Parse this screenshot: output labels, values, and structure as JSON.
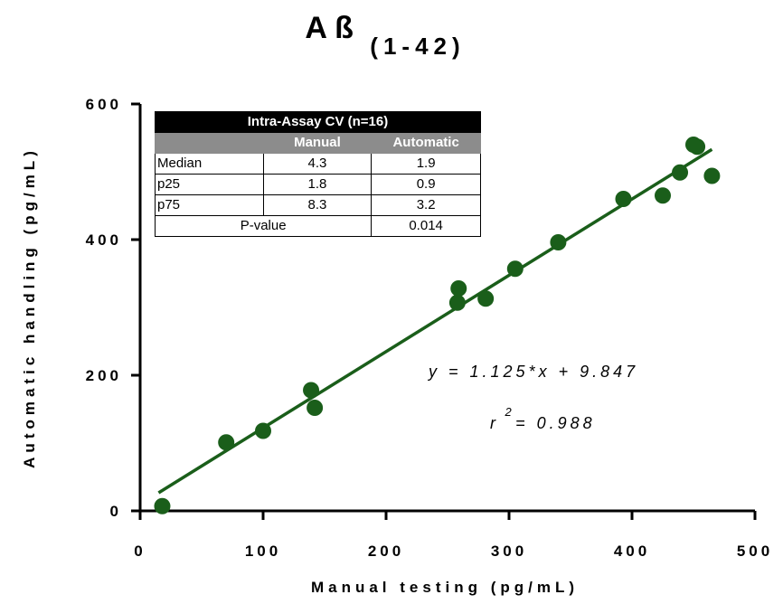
{
  "chart_data": {
    "type": "scatter",
    "title": "A ß",
    "title_subscript": "(1-42)",
    "xlabel": "Manual testing (pg/mL)",
    "ylabel": "Automatic handling (pg/mL)",
    "xlim": [
      0,
      500
    ],
    "ylim": [
      0,
      600
    ],
    "xticks": [
      0,
      100,
      200,
      300,
      400,
      500
    ],
    "yticks": [
      0,
      200,
      400,
      600
    ],
    "grid": false,
    "point_color": "#1a5e1a",
    "line_color": "#1a5e1a",
    "points": [
      {
        "x": 18,
        "y": 7
      },
      {
        "x": 70,
        "y": 101
      },
      {
        "x": 100,
        "y": 118
      },
      {
        "x": 139,
        "y": 178
      },
      {
        "x": 142,
        "y": 152
      },
      {
        "x": 258,
        "y": 307
      },
      {
        "x": 259,
        "y": 328
      },
      {
        "x": 281,
        "y": 313
      },
      {
        "x": 305,
        "y": 357
      },
      {
        "x": 340,
        "y": 396
      },
      {
        "x": 393,
        "y": 460
      },
      {
        "x": 425,
        "y": 465
      },
      {
        "x": 439,
        "y": 499
      },
      {
        "x": 450,
        "y": 540
      },
      {
        "x": 453,
        "y": 537
      },
      {
        "x": 465,
        "y": 494
      }
    ],
    "fit": {
      "slope": 1.125,
      "intercept": 9.847,
      "x_range": [
        15,
        465
      ],
      "equation_text": "y = 1.125*x + 9.847",
      "r2_base": "r",
      "r2_exp": "2",
      "r2_value": " = 0.988"
    }
  },
  "table": {
    "caption": "Intra-Assay CV (n=16)",
    "headers": [
      "",
      "Manual",
      "Automatic"
    ],
    "rows": [
      {
        "label": "Median",
        "manual": "4.3",
        "automatic": "1.9"
      },
      {
        "label": "p25",
        "manual": "1.8",
        "automatic": "0.9"
      },
      {
        "label": "p75",
        "manual": "8.3",
        "automatic": "3.2"
      }
    ],
    "pvalue_label": "P-value",
    "pvalue": "0.014"
  }
}
